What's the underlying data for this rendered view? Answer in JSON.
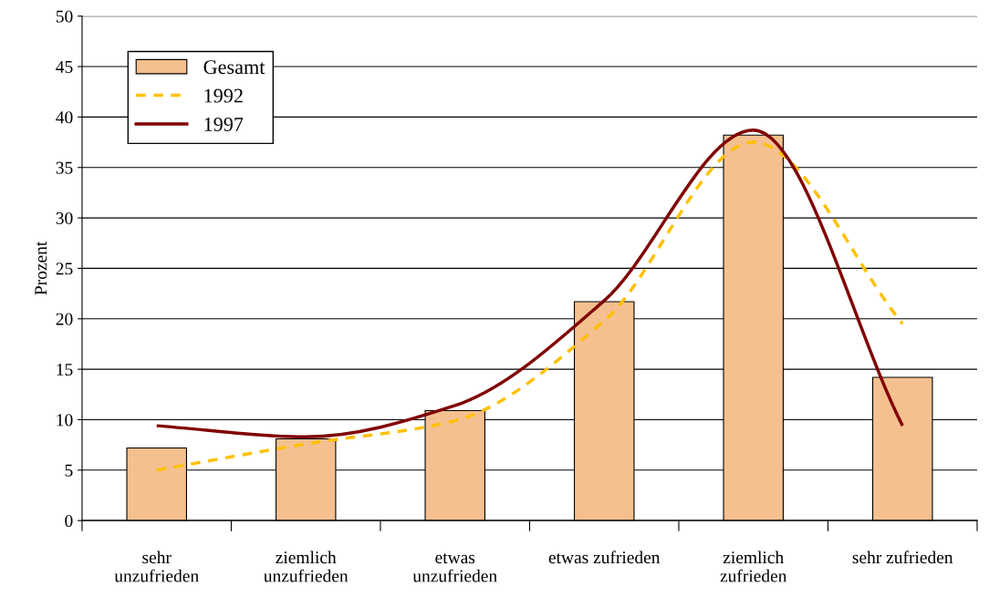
{
  "chart_data": {
    "type": "bar",
    "ylabel": "Prozent",
    "categories": [
      "sehr\nunzufrieden",
      "ziemlich\nunzufrieden",
      "etwas\nunzufrieden",
      "etwas zufrieden",
      "ziemlich\nzufrieden",
      "sehr zufrieden"
    ],
    "series": [
      {
        "name": "Gesamt",
        "color": "#f5c08f",
        "values": [
          7.2,
          8.1,
          10.9,
          21.7,
          38.2,
          14.2
        ]
      },
      {
        "name": "1992",
        "type": "line",
        "color": "#ffc000",
        "line_style": "dashed",
        "values": [
          5.0,
          7.6,
          9.9,
          19.8,
          37.5,
          19.5
        ]
      },
      {
        "name": "1997",
        "type": "line",
        "color": "#800000",
        "line_style": "solid",
        "values": [
          9.4,
          8.3,
          11.4,
          21.8,
          38.7,
          9.4
        ]
      }
    ],
    "ylim": [
      0,
      50
    ],
    "yticks": [
      0,
      5,
      10,
      15,
      20,
      25,
      30,
      35,
      40,
      45,
      50
    ],
    "grid": "y",
    "legend": "top left"
  }
}
